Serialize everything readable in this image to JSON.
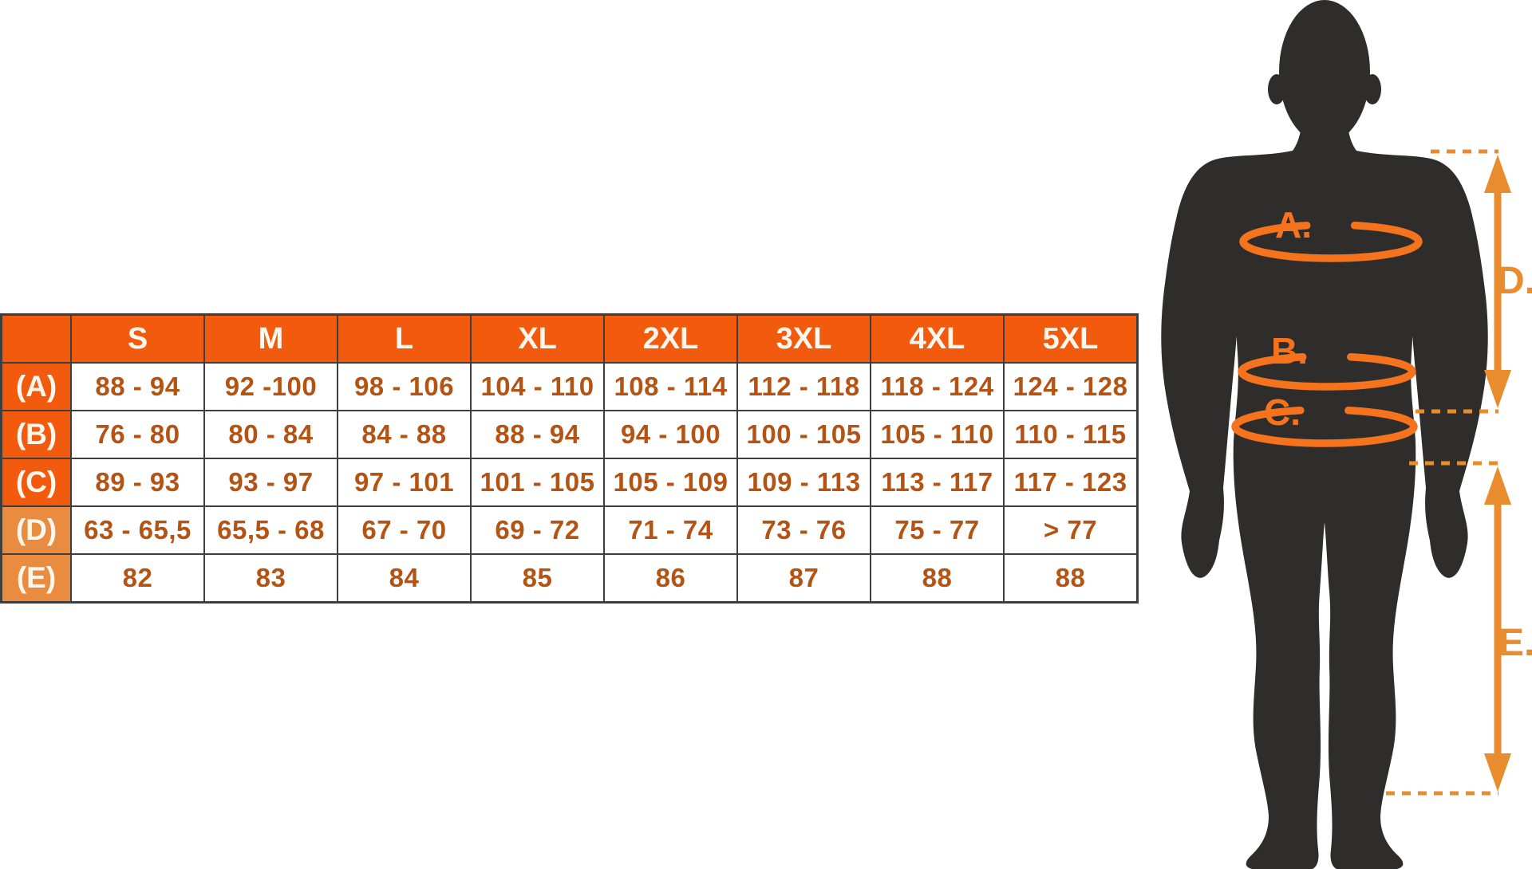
{
  "colors": {
    "header_orange": "#F25B0D",
    "muted_label_orange": "#E98C3F",
    "value_text": "#B35415",
    "tape_orange": "#F4731C",
    "arrow_orange": "#E98C2E",
    "silhouette": "#2E2D2C",
    "grid_line": "#3E3E3E"
  },
  "table": {
    "corner_label": "",
    "sizes": [
      "S",
      "M",
      "L",
      "XL",
      "2XL",
      "3XL",
      "4XL",
      "5XL"
    ],
    "rows": [
      {
        "label": "(A)",
        "label_style": "bright",
        "values": [
          "88 - 94",
          "92 -100",
          "98 - 106",
          "104 - 110",
          "108 - 114",
          "112 - 118",
          "118 - 124",
          "124 - 128"
        ]
      },
      {
        "label": "(B)",
        "label_style": "bright",
        "values": [
          "76 - 80",
          "80 - 84",
          "84 - 88",
          "88 - 94",
          "94 - 100",
          "100 - 105",
          "105 - 110",
          "110 - 115"
        ]
      },
      {
        "label": "(C)",
        "label_style": "bright",
        "values": [
          "89 - 93",
          "93 - 97",
          "97 - 101",
          "101 - 105",
          "105 - 109",
          "109 - 113",
          "113 - 117",
          "117 - 123"
        ]
      },
      {
        "label": "(D)",
        "label_style": "muted",
        "values": [
          "63 - 65,5",
          "65,5 - 68",
          "67 - 70",
          "69 - 72",
          "71 - 74",
          "73 - 76",
          "75 - 77",
          "> 77"
        ]
      },
      {
        "label": "(E)",
        "label_style": "muted",
        "values": [
          "82",
          "83",
          "84",
          "85",
          "86",
          "87",
          "88",
          "88"
        ]
      }
    ]
  },
  "figure": {
    "labels": {
      "chest": "A.",
      "waist": "B.",
      "hip": "C.",
      "torso_height": "D.",
      "leg_length": "E."
    }
  },
  "chart_data": {
    "type": "table",
    "columns": [
      "",
      "S",
      "M",
      "L",
      "XL",
      "2XL",
      "3XL",
      "4XL",
      "5XL"
    ],
    "rows": [
      [
        "(A)",
        "88 - 94",
        "92 -100",
        "98 - 106",
        "104 - 110",
        "108 - 114",
        "112 - 118",
        "118 - 124",
        "124 - 128"
      ],
      [
        "(B)",
        "76 - 80",
        "80 - 84",
        "84 - 88",
        "88 - 94",
        "94 - 100",
        "100 - 105",
        "105 - 110",
        "110 - 115"
      ],
      [
        "(C)",
        "89 - 93",
        "93 - 97",
        "97 - 101",
        "101 - 105",
        "105 - 109",
        "109 - 113",
        "113 - 117",
        "117 - 123"
      ],
      [
        "(D)",
        "63 - 65,5",
        "65,5 - 68",
        "67 - 70",
        "69 - 72",
        "71 - 74",
        "73 - 76",
        "75 - 77",
        "> 77"
      ],
      [
        "(E)",
        "82",
        "83",
        "84",
        "85",
        "86",
        "87",
        "88",
        "88"
      ]
    ]
  }
}
